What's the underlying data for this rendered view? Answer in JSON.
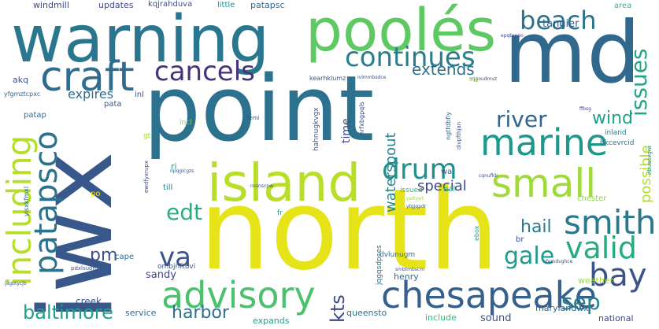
{
  "words": [
    {
      "text": "north",
      "color": "#e6e419"
    },
    {
      "text": "point",
      "color": "#2c718e"
    },
    {
      "text": "iwx",
      "color": "#38588c"
    },
    {
      "text": "md",
      "color": "#31688e"
    },
    {
      "text": "warning",
      "color": "#2a768e"
    },
    {
      "text": "poolés",
      "color": "#5ec962"
    },
    {
      "text": "island",
      "color": "#b8de29"
    },
    {
      "text": "chesapeake",
      "color": "#355f8d"
    },
    {
      "text": "advisory",
      "color": "#4ac16d"
    },
    {
      "text": "marine",
      "color": "#1f988b"
    },
    {
      "text": "craft",
      "color": "#2f6c8e"
    },
    {
      "text": "small",
      "color": "#9fda3a"
    },
    {
      "text": "bay",
      "color": "#3b528b"
    },
    {
      "text": "smith",
      "color": "#2a788e"
    },
    {
      "text": "including",
      "color": "#b5de2b"
    },
    {
      "text": "patapsco",
      "color": "#2c728e"
    },
    {
      "text": "valid",
      "color": "#25ac82"
    },
    {
      "text": "drum",
      "color": "#21918c"
    },
    {
      "text": "continues",
      "color": "#277f8e"
    },
    {
      "text": "cancels",
      "color": "#46327e"
    },
    {
      "text": "beach",
      "color": "#2d708e"
    },
    {
      "text": "river",
      "color": "#32648e"
    },
    {
      "text": "issues",
      "color": "#21a685"
    },
    {
      "text": "va",
      "color": "#3b528b"
    },
    {
      "text": "edt",
      "color": "#29af7f"
    },
    {
      "text": "gale",
      "color": "#1e9b8a"
    },
    {
      "text": "sep",
      "color": "#26828e"
    },
    {
      "text": "baltimore",
      "color": "#1f9e89"
    },
    {
      "text": "kts",
      "color": "#3e4989"
    },
    {
      "text": "harbor",
      "color": "#2d708e"
    },
    {
      "text": "hail",
      "color": "#2a778e"
    },
    {
      "text": "wind",
      "color": "#1fa187"
    },
    {
      "text": "extends",
      "color": "#2c728e"
    },
    {
      "text": "pm",
      "color": "#3d4e8a"
    },
    {
      "text": "special",
      "color": "#3e4989"
    },
    {
      "text": "waterspout",
      "color": "#23888e"
    },
    {
      "text": "possible",
      "color": "#b0dd2f"
    },
    {
      "text": "expires",
      "color": "#2e6d8e"
    },
    {
      "text": "time",
      "color": "#3e4a89"
    },
    {
      "text": "tangier",
      "color": "#35608d"
    },
    {
      "text": "sandy",
      "color": "#404588"
    },
    {
      "text": "creek",
      "color": "#3a538b"
    },
    {
      "text": "service",
      "color": "#2f6b8e"
    },
    {
      "text": "expands",
      "color": "#1fa088"
    },
    {
      "text": "queensto",
      "color": "#2c728e"
    },
    {
      "text": "sound",
      "color": "#3a538b"
    },
    {
      "text": "include",
      "color": "#35b779"
    },
    {
      "text": "marylandwx",
      "color": "#33638d"
    },
    {
      "text": "national",
      "color": "#3f4889"
    },
    {
      "text": "weather",
      "color": "#9bd93c"
    },
    {
      "text": "henry",
      "color": "#2e6e8e"
    },
    {
      "text": "windmill",
      "color": "#3e4989"
    },
    {
      "text": "updates",
      "color": "#3f4889"
    },
    {
      "text": "kqjrahduva",
      "color": "#3b528b"
    },
    {
      "text": "little",
      "color": "#238a8d"
    },
    {
      "text": "patapsc",
      "color": "#31678e"
    },
    {
      "text": "area",
      "color": "#37b878"
    },
    {
      "text": "akq",
      "color": "#3b528b"
    },
    {
      "text": "yfgmztcpxc",
      "color": "#33638d"
    },
    {
      "text": "inl",
      "color": "#3b528b"
    },
    {
      "text": "pata",
      "color": "#3b528b"
    },
    {
      "text": "patap",
      "color": "#2e6e8e"
    },
    {
      "text": "incl",
      "color": "#93d741"
    },
    {
      "text": "ri",
      "color": "#1fa287"
    },
    {
      "text": "po",
      "color": "#f1e51d"
    },
    {
      "text": "till",
      "color": "#29798e"
    },
    {
      "text": "cape",
      "color": "#2e6d8e"
    },
    {
      "text": "fr",
      "color": "#1f9a8a"
    },
    {
      "text": "bal",
      "color": "#22a785"
    },
    {
      "text": "issued",
      "color": "#35b779"
    },
    {
      "text": "br",
      "color": "#3a538b"
    },
    {
      "text": "chester",
      "color": "#8fd744"
    },
    {
      "text": "inland",
      "color": "#26828e"
    },
    {
      "text": "wa",
      "color": "#3b528b"
    },
    {
      "text": "hahnugkvgx",
      "color": "#3b528b"
    },
    {
      "text": "kearhklumz",
      "color": "#3b528b"
    },
    {
      "text": "dvlunugm",
      "color": "#2c718e"
    },
    {
      "text": "ombjnftuvi",
      "color": "#3b528b"
    },
    {
      "text": "jqgqsdpses",
      "color": "#2e6f8e"
    },
    {
      "text": "ngtfdbfiy",
      "color": "#2e6e8e"
    },
    {
      "text": "nrfxbgpqls",
      "color": "#3b528b"
    },
    {
      "text": "bkcevrcid",
      "color": "#2d708e"
    },
    {
      "text": "yisxkfmxl",
      "color": "#2e6e8e"
    },
    {
      "text": "ewdfyxrupx",
      "color": "#3e4989"
    },
    {
      "text": "gt",
      "color": "#a0da39"
    },
    {
      "text": "nbuasvgnt",
      "color": "#21918c"
    },
    {
      "text": "epqbrpoo",
      "color": "#3e4989"
    },
    {
      "text": "bemi",
      "color": "#3b528b"
    },
    {
      "text": "npqglcgzs",
      "color": "#3b528b"
    },
    {
      "text": "pdxlsuord",
      "color": "#3b528b"
    },
    {
      "text": "jagbtycjb",
      "color": "#3b528b"
    },
    {
      "text": "cqnufkb",
      "color": "#3b528b"
    },
    {
      "text": "mjgoudmvz",
      "color": "#3b528b"
    },
    {
      "text": "yaltywt",
      "color": "#a8db34"
    },
    {
      "text": "nssnscpw",
      "color": "#3b528b"
    },
    {
      "text": "ivlmmbsdce",
      "color": "#3b528b"
    },
    {
      "text": "ytgjqpdr",
      "color": "#3b528b"
    },
    {
      "text": "smbtmbscm",
      "color": "#3b528b"
    },
    {
      "text": "divpfthjan",
      "color": "#3b528b"
    },
    {
      "text": "ofemdvghce",
      "color": "#3b528b"
    },
    {
      "text": "ote",
      "color": "#a8db34"
    },
    {
      "text": "ebox",
      "color": "#1f9a8a"
    },
    {
      "text": "ffbsg",
      "color": "#3e4989"
    }
  ]
}
